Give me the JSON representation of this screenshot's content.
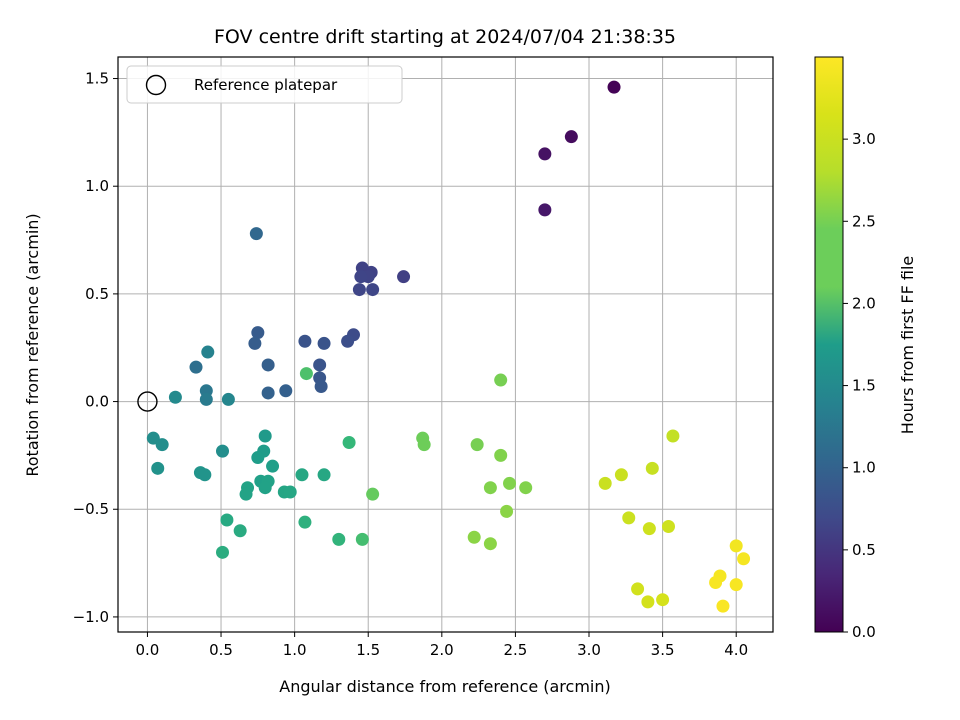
{
  "chart_data": {
    "type": "scatter",
    "title": "FOV centre drift starting at 2024/07/04 21:38:35",
    "xlabel": "Angular distance from reference (arcmin)",
    "ylabel": "Rotation from reference (arcmin)",
    "xlim": [
      -0.2,
      4.25
    ],
    "ylim": [
      -1.07,
      1.6
    ],
    "xticks": [
      0.0,
      0.5,
      1.0,
      1.5,
      2.0,
      2.5,
      3.0,
      3.5,
      4.0
    ],
    "xtick_labels": [
      "0.0",
      "0.5",
      "1.0",
      "1.5",
      "2.0",
      "2.5",
      "3.0",
      "3.5",
      "4.0"
    ],
    "yticks": [
      -1.0,
      -0.5,
      0.0,
      0.5,
      1.0,
      1.5
    ],
    "ytick_labels": [
      "−1.0",
      "−0.5",
      "0.0",
      "0.5",
      "1.0",
      "1.5"
    ],
    "grid": true,
    "legend": {
      "position": "top-left",
      "entries": [
        {
          "label": "Reference platepar",
          "marker": "open-circle"
        }
      ]
    },
    "reference_point": {
      "x": 0.0,
      "y": 0.0
    },
    "colorbar": {
      "label": "Hours from first FF file",
      "colormap": "viridis",
      "range": [
        0.0,
        3.5
      ],
      "ticks": [
        0.0,
        0.5,
        1.0,
        1.5,
        2.0,
        2.5,
        3.0
      ],
      "tick_labels": [
        "0.0",
        "0.5",
        "1.0",
        "1.5",
        "2.0",
        "2.5",
        "3.0"
      ]
    },
    "points": [
      {
        "x": 3.17,
        "y": 1.46,
        "h": 0.02
      },
      {
        "x": 2.88,
        "y": 1.23,
        "h": 0.1
      },
      {
        "x": 2.7,
        "y": 1.15,
        "h": 0.15
      },
      {
        "x": 2.7,
        "y": 0.89,
        "h": 0.2
      },
      {
        "x": 1.74,
        "y": 0.58,
        "h": 0.6
      },
      {
        "x": 1.46,
        "y": 0.62,
        "h": 0.62
      },
      {
        "x": 1.52,
        "y": 0.6,
        "h": 0.62
      },
      {
        "x": 1.5,
        "y": 0.58,
        "h": 0.64
      },
      {
        "x": 1.45,
        "y": 0.58,
        "h": 0.65
      },
      {
        "x": 1.44,
        "y": 0.52,
        "h": 0.66
      },
      {
        "x": 1.53,
        "y": 0.52,
        "h": 0.66
      },
      {
        "x": 1.4,
        "y": 0.31,
        "h": 0.72
      },
      {
        "x": 1.36,
        "y": 0.28,
        "h": 0.75
      },
      {
        "x": 1.07,
        "y": 0.28,
        "h": 0.8
      },
      {
        "x": 1.2,
        "y": 0.27,
        "h": 0.8
      },
      {
        "x": 1.17,
        "y": 0.17,
        "h": 0.82
      },
      {
        "x": 1.17,
        "y": 0.11,
        "h": 0.84
      },
      {
        "x": 1.18,
        "y": 0.07,
        "h": 0.86
      },
      {
        "x": 0.75,
        "y": 0.32,
        "h": 0.9
      },
      {
        "x": 0.73,
        "y": 0.27,
        "h": 0.92
      },
      {
        "x": 0.82,
        "y": 0.17,
        "h": 0.94
      },
      {
        "x": 0.94,
        "y": 0.05,
        "h": 0.96
      },
      {
        "x": 0.82,
        "y": 0.04,
        "h": 0.98
      },
      {
        "x": 0.74,
        "y": 0.78,
        "h": 1.05
      },
      {
        "x": 0.33,
        "y": 0.16,
        "h": 1.15
      },
      {
        "x": 0.4,
        "y": 0.05,
        "h": 1.25
      },
      {
        "x": 0.4,
        "y": 0.01,
        "h": 1.3
      },
      {
        "x": 0.41,
        "y": 0.23,
        "h": 1.4
      },
      {
        "x": 0.55,
        "y": 0.01,
        "h": 1.45
      },
      {
        "x": 0.19,
        "y": 0.02,
        "h": 1.5
      },
      {
        "x": 0.04,
        "y": -0.17,
        "h": 1.55
      },
      {
        "x": 0.1,
        "y": -0.2,
        "h": 1.55
      },
      {
        "x": 0.07,
        "y": -0.31,
        "h": 1.6
      },
      {
        "x": 0.51,
        "y": -0.23,
        "h": 1.55
      },
      {
        "x": 0.36,
        "y": -0.33,
        "h": 1.62
      },
      {
        "x": 0.39,
        "y": -0.34,
        "h": 1.62
      },
      {
        "x": 0.8,
        "y": -0.16,
        "h": 1.7
      },
      {
        "x": 0.79,
        "y": -0.23,
        "h": 1.72
      },
      {
        "x": 0.75,
        "y": -0.26,
        "h": 1.74
      },
      {
        "x": 0.85,
        "y": -0.3,
        "h": 1.76
      },
      {
        "x": 0.77,
        "y": -0.37,
        "h": 1.78
      },
      {
        "x": 0.82,
        "y": -0.37,
        "h": 1.8
      },
      {
        "x": 0.8,
        "y": -0.4,
        "h": 1.8
      },
      {
        "x": 0.68,
        "y": -0.4,
        "h": 1.82
      },
      {
        "x": 0.67,
        "y": -0.43,
        "h": 1.82
      },
      {
        "x": 0.93,
        "y": -0.42,
        "h": 1.85
      },
      {
        "x": 0.97,
        "y": -0.42,
        "h": 1.86
      },
      {
        "x": 1.05,
        "y": -0.34,
        "h": 1.88
      },
      {
        "x": 1.2,
        "y": -0.34,
        "h": 1.88
      },
      {
        "x": 0.54,
        "y": -0.55,
        "h": 1.9
      },
      {
        "x": 0.63,
        "y": -0.6,
        "h": 1.92
      },
      {
        "x": 0.51,
        "y": -0.7,
        "h": 1.95
      },
      {
        "x": 1.07,
        "y": -0.56,
        "h": 2.0
      },
      {
        "x": 1.3,
        "y": -0.64,
        "h": 2.05
      },
      {
        "x": 1.37,
        "y": -0.19,
        "h": 2.1
      },
      {
        "x": 1.46,
        "y": -0.64,
        "h": 2.2
      },
      {
        "x": 1.08,
        "y": 0.13,
        "h": 2.25
      },
      {
        "x": 1.53,
        "y": -0.43,
        "h": 2.4
      },
      {
        "x": 1.87,
        "y": -0.17,
        "h": 2.45
      },
      {
        "x": 1.88,
        "y": -0.2,
        "h": 2.45
      },
      {
        "x": 2.24,
        "y": -0.2,
        "h": 2.5
      },
      {
        "x": 2.4,
        "y": 0.1,
        "h": 2.5
      },
      {
        "x": 2.4,
        "y": -0.25,
        "h": 2.55
      },
      {
        "x": 2.33,
        "y": -0.4,
        "h": 2.55
      },
      {
        "x": 2.46,
        "y": -0.38,
        "h": 2.55
      },
      {
        "x": 2.57,
        "y": -0.4,
        "h": 2.55
      },
      {
        "x": 2.44,
        "y": -0.51,
        "h": 2.6
      },
      {
        "x": 2.22,
        "y": -0.63,
        "h": 2.6
      },
      {
        "x": 2.33,
        "y": -0.66,
        "h": 2.6
      },
      {
        "x": 3.57,
        "y": -0.16,
        "h": 2.95
      },
      {
        "x": 3.43,
        "y": -0.31,
        "h": 2.98
      },
      {
        "x": 3.22,
        "y": -0.34,
        "h": 3.0
      },
      {
        "x": 3.11,
        "y": -0.38,
        "h": 3.0
      },
      {
        "x": 3.27,
        "y": -0.54,
        "h": 3.02
      },
      {
        "x": 3.41,
        "y": -0.59,
        "h": 3.05
      },
      {
        "x": 3.54,
        "y": -0.58,
        "h": 3.05
      },
      {
        "x": 3.33,
        "y": -0.87,
        "h": 3.08
      },
      {
        "x": 3.4,
        "y": -0.93,
        "h": 3.1
      },
      {
        "x": 3.5,
        "y": -0.92,
        "h": 3.12
      },
      {
        "x": 4.0,
        "y": -0.67,
        "h": 3.4
      },
      {
        "x": 4.05,
        "y": -0.73,
        "h": 3.42
      },
      {
        "x": 3.89,
        "y": -0.81,
        "h": 3.42
      },
      {
        "x": 3.86,
        "y": -0.84,
        "h": 3.44
      },
      {
        "x": 4.0,
        "y": -0.85,
        "h": 3.44
      },
      {
        "x": 3.91,
        "y": -0.95,
        "h": 3.46
      }
    ]
  }
}
